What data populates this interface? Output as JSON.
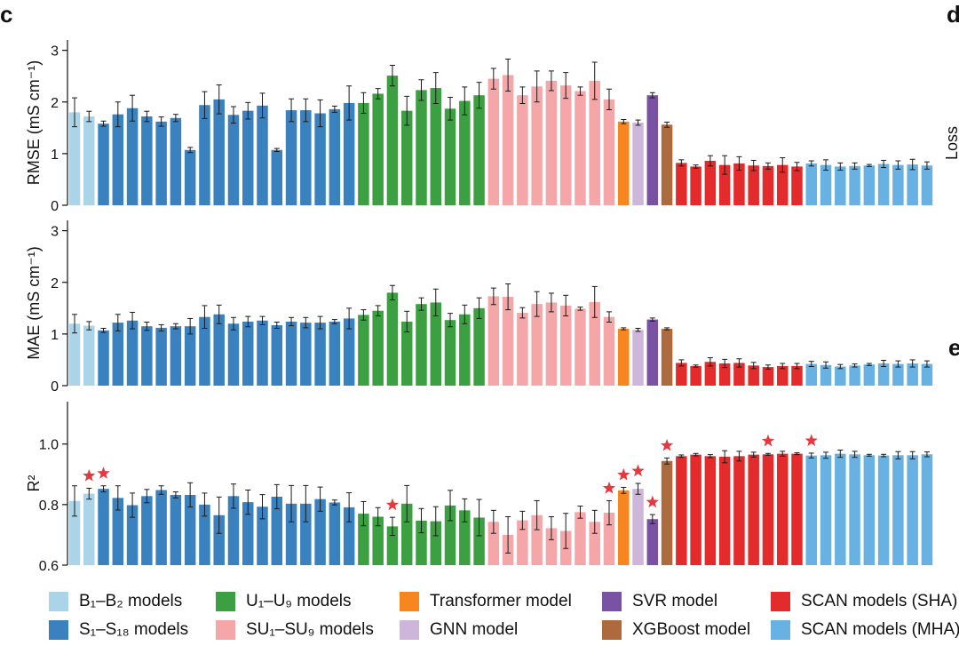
{
  "panel_labels": {
    "left": "c",
    "right_top": "d",
    "right_mid": "e",
    "right_axis": "Loss"
  },
  "colors": {
    "B": "#acd4e8",
    "S": "#3a82bf",
    "U": "#3ca043",
    "SU": "#f4a6a8",
    "Transformer": "#f7861f",
    "GNN": "#cdb6da",
    "SVR": "#7a52a4",
    "XGBoost": "#ad6a3c",
    "SHA": "#e32b2c",
    "MHA": "#68b2e3",
    "star": "#e43a3f"
  },
  "legend": [
    {
      "key": "B",
      "label": "B₁–B₂ models"
    },
    {
      "key": "U",
      "label": "U₁–U₉ models"
    },
    {
      "key": "Transformer",
      "label": "Transformer model"
    },
    {
      "key": "SVR",
      "label": "SVR model"
    },
    {
      "key": "SHA",
      "label": "SCAN models (SHA)"
    },
    {
      "key": "S",
      "label": "S₁–S₁₈ models"
    },
    {
      "key": "SU",
      "label": "SU₁–SU₉ models"
    },
    {
      "key": "GNN",
      "label": "GNN model"
    },
    {
      "key": "XGBoost",
      "label": "XGBoost model"
    },
    {
      "key": "MHA",
      "label": "SCAN models (MHA)"
    }
  ],
  "chart_data": [
    {
      "type": "bar",
      "ylabel": "RMSE (mS cm⁻¹)",
      "ylim": [
        0,
        3.2
      ],
      "yticks": [
        0,
        1,
        2,
        3
      ],
      "yticklabels": [
        "0",
        "1",
        "2",
        "3"
      ],
      "groups": [
        "B",
        "B",
        "S",
        "S",
        "S",
        "S",
        "S",
        "S",
        "S",
        "S",
        "S",
        "S",
        "S",
        "S",
        "S",
        "S",
        "S",
        "S",
        "S",
        "S",
        "U",
        "U",
        "U",
        "U",
        "U",
        "U",
        "U",
        "U",
        "U",
        "SU",
        "SU",
        "SU",
        "SU",
        "SU",
        "SU",
        "SU",
        "SU",
        "SU",
        "Transformer",
        "GNN",
        "SVR",
        "XGBoost",
        "SHA",
        "SHA",
        "SHA",
        "SHA",
        "SHA",
        "SHA",
        "SHA",
        "SHA",
        "SHA",
        "MHA",
        "MHA",
        "MHA",
        "MHA",
        "MHA",
        "MHA",
        "MHA",
        "MHA",
        "MHA"
      ],
      "values": [
        1.8,
        1.72,
        1.58,
        1.76,
        1.88,
        1.72,
        1.62,
        1.69,
        1.07,
        1.94,
        2.05,
        1.75,
        1.83,
        1.93,
        1.07,
        1.84,
        1.84,
        1.78,
        1.86,
        1.98,
        1.98,
        2.16,
        2.51,
        1.83,
        2.23,
        2.27,
        1.87,
        2.02,
        2.13,
        2.45,
        2.52,
        2.13,
        2.3,
        2.41,
        2.32,
        2.21,
        2.41,
        2.05,
        1.62,
        1.6,
        2.13,
        1.56,
        0.82,
        0.75,
        0.86,
        0.78,
        0.81,
        0.77,
        0.76,
        0.78,
        0.75,
        0.81,
        0.78,
        0.75,
        0.76,
        0.77,
        0.8,
        0.78,
        0.79,
        0.77
      ],
      "errors": [
        0.28,
        0.1,
        0.05,
        0.24,
        0.25,
        0.1,
        0.09,
        0.07,
        0.05,
        0.26,
        0.28,
        0.16,
        0.16,
        0.24,
        0.03,
        0.22,
        0.22,
        0.26,
        0.06,
        0.33,
        0.2,
        0.1,
        0.2,
        0.28,
        0.2,
        0.3,
        0.22,
        0.27,
        0.25,
        0.2,
        0.31,
        0.16,
        0.3,
        0.19,
        0.25,
        0.08,
        0.36,
        0.2,
        0.04,
        0.05,
        0.05,
        0.05,
        0.06,
        0.03,
        0.1,
        0.18,
        0.13,
        0.1,
        0.06,
        0.14,
        0.08,
        0.05,
        0.1,
        0.07,
        0.06,
        0.02,
        0.07,
        0.08,
        0.1,
        0.07
      ]
    },
    {
      "type": "bar",
      "ylabel": "MAE (mS cm⁻¹)",
      "ylim": [
        0,
        3.2
      ],
      "yticks": [
        0,
        1,
        2,
        3
      ],
      "yticklabels": [
        "0",
        "1",
        "2",
        "3"
      ],
      "groups": [
        "B",
        "B",
        "S",
        "S",
        "S",
        "S",
        "S",
        "S",
        "S",
        "S",
        "S",
        "S",
        "S",
        "S",
        "S",
        "S",
        "S",
        "S",
        "S",
        "S",
        "U",
        "U",
        "U",
        "U",
        "U",
        "U",
        "U",
        "U",
        "U",
        "SU",
        "SU",
        "SU",
        "SU",
        "SU",
        "SU",
        "SU",
        "SU",
        "SU",
        "Transformer",
        "GNN",
        "SVR",
        "XGBoost",
        "SHA",
        "SHA",
        "SHA",
        "SHA",
        "SHA",
        "SHA",
        "SHA",
        "SHA",
        "SHA",
        "MHA",
        "MHA",
        "MHA",
        "MHA",
        "MHA",
        "MHA",
        "MHA",
        "MHA",
        "MHA"
      ],
      "values": [
        1.2,
        1.16,
        1.07,
        1.22,
        1.26,
        1.15,
        1.12,
        1.15,
        1.15,
        1.33,
        1.38,
        1.2,
        1.24,
        1.26,
        1.17,
        1.24,
        1.22,
        1.22,
        1.24,
        1.3,
        1.37,
        1.45,
        1.8,
        1.24,
        1.58,
        1.61,
        1.27,
        1.38,
        1.5,
        1.73,
        1.72,
        1.41,
        1.58,
        1.61,
        1.55,
        1.49,
        1.62,
        1.33,
        1.1,
        1.08,
        1.28,
        1.1,
        0.44,
        0.38,
        0.46,
        0.43,
        0.44,
        0.39,
        0.36,
        0.38,
        0.38,
        0.42,
        0.4,
        0.37,
        0.39,
        0.41,
        0.43,
        0.42,
        0.43,
        0.42
      ],
      "errors": [
        0.18,
        0.08,
        0.04,
        0.16,
        0.16,
        0.08,
        0.06,
        0.05,
        0.15,
        0.22,
        0.18,
        0.12,
        0.1,
        0.08,
        0.06,
        0.08,
        0.1,
        0.12,
        0.04,
        0.2,
        0.1,
        0.1,
        0.14,
        0.2,
        0.12,
        0.26,
        0.13,
        0.18,
        0.2,
        0.16,
        0.25,
        0.1,
        0.24,
        0.18,
        0.2,
        0.03,
        0.3,
        0.1,
        0.02,
        0.03,
        0.03,
        0.02,
        0.06,
        0.02,
        0.08,
        0.08,
        0.08,
        0.06,
        0.04,
        0.05,
        0.05,
        0.05,
        0.06,
        0.04,
        0.03,
        0.02,
        0.06,
        0.06,
        0.07,
        0.06
      ]
    },
    {
      "type": "bar",
      "ylabel": "R²",
      "ylim": [
        0.6,
        1.14
      ],
      "yticks": [
        0.6,
        0.8,
        1.0
      ],
      "yticklabels": [
        "0.6",
        "0.8",
        "1.0"
      ],
      "groups": [
        "B",
        "B",
        "S",
        "S",
        "S",
        "S",
        "S",
        "S",
        "S",
        "S",
        "S",
        "S",
        "S",
        "S",
        "S",
        "S",
        "S",
        "S",
        "S",
        "S",
        "U",
        "U",
        "U",
        "U",
        "U",
        "U",
        "U",
        "U",
        "U",
        "SU",
        "SU",
        "SU",
        "SU",
        "SU",
        "SU",
        "SU",
        "SU",
        "SU",
        "Transformer",
        "GNN",
        "SVR",
        "XGBoost",
        "SHA",
        "SHA",
        "SHA",
        "SHA",
        "SHA",
        "SHA",
        "SHA",
        "SHA",
        "SHA",
        "MHA",
        "MHA",
        "MHA",
        "MHA",
        "MHA",
        "MHA",
        "MHA",
        "MHA",
        "MHA"
      ],
      "values": [
        0.812,
        0.836,
        0.852,
        0.822,
        0.798,
        0.828,
        0.848,
        0.832,
        0.832,
        0.8,
        0.765,
        0.828,
        0.808,
        0.793,
        0.826,
        0.803,
        0.803,
        0.818,
        0.807,
        0.791,
        0.77,
        0.76,
        0.728,
        0.803,
        0.747,
        0.745,
        0.797,
        0.781,
        0.757,
        0.743,
        0.7,
        0.748,
        0.765,
        0.722,
        0.713,
        0.775,
        0.743,
        0.773,
        0.847,
        0.852,
        0.752,
        0.944,
        0.96,
        0.965,
        0.96,
        0.958,
        0.96,
        0.965,
        0.966,
        0.968,
        0.968,
        0.962,
        0.963,
        0.968,
        0.966,
        0.963,
        0.962,
        0.963,
        0.963,
        0.966
      ],
      "errors": [
        0.05,
        0.018,
        0.01,
        0.04,
        0.04,
        0.022,
        0.014,
        0.01,
        0.04,
        0.038,
        0.06,
        0.04,
        0.04,
        0.04,
        0.04,
        0.06,
        0.06,
        0.04,
        0.008,
        0.048,
        0.04,
        0.03,
        0.03,
        0.06,
        0.04,
        0.048,
        0.05,
        0.038,
        0.06,
        0.038,
        0.06,
        0.03,
        0.048,
        0.038,
        0.058,
        0.02,
        0.038,
        0.04,
        0.01,
        0.018,
        0.015,
        0.01,
        0.004,
        0.004,
        0.005,
        0.02,
        0.016,
        0.008,
        0.003,
        0.008,
        0.003,
        0.008,
        0.01,
        0.012,
        0.01,
        0.003,
        0.004,
        0.012,
        0.012,
        0.008
      ],
      "stars": [
        1,
        2,
        22,
        37,
        38,
        39,
        40,
        41,
        48,
        51
      ]
    }
  ]
}
